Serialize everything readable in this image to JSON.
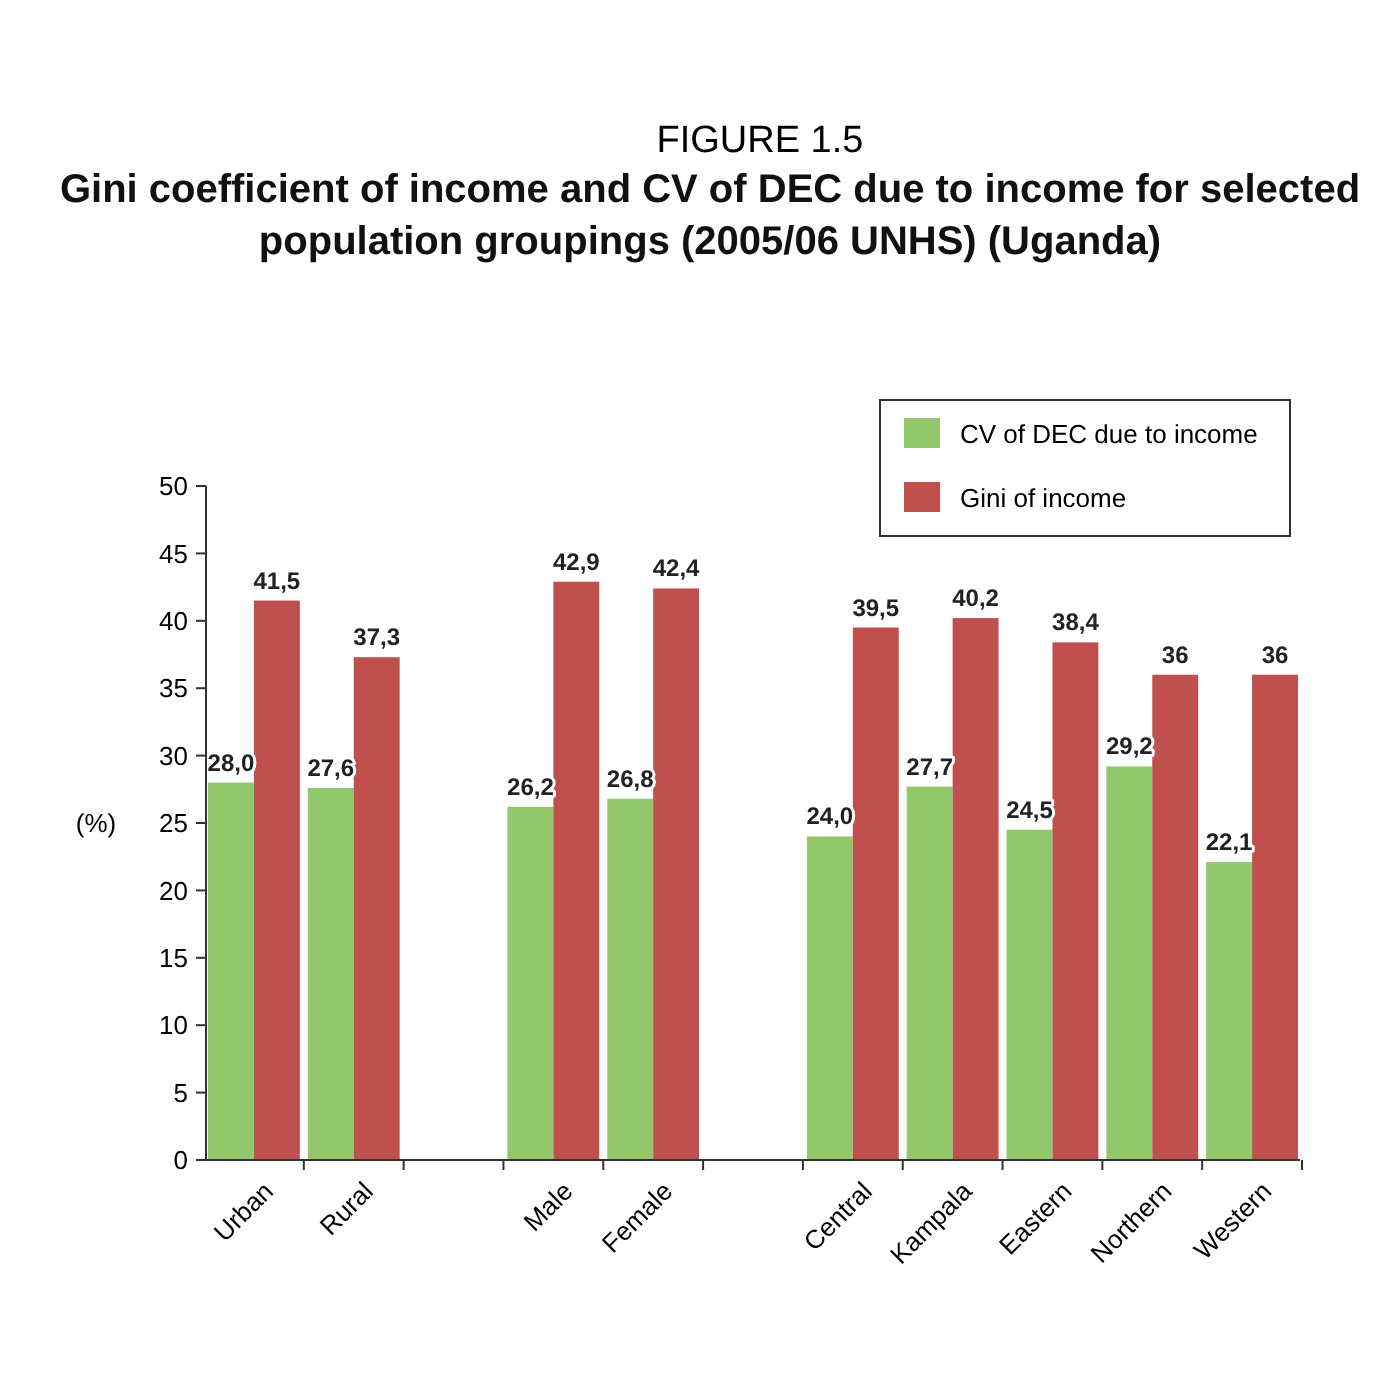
{
  "chart_data": {
    "type": "bar",
    "title": "FIGURE 1.5",
    "subtitle": "Gini coefficient of income and CV of DEC due to income for selected population groupings (2005/06 UNHS) (Uganda)",
    "ylabel": "(%)",
    "categories": [
      "Urban",
      "Rural",
      null,
      "Male",
      "Female",
      null,
      "Central",
      "Kampala",
      "Eastern",
      "Northern",
      "Western"
    ],
    "series": [
      {
        "name": "CV of DEC due to income",
        "color": "#92c86b",
        "values": [
          28.0,
          27.6,
          null,
          26.2,
          26.8,
          null,
          24.0,
          27.7,
          24.5,
          29.2,
          22.1
        ],
        "value_labels": [
          "28,0",
          "27,6",
          null,
          "26,2",
          "26,8",
          null,
          "24,0",
          "27,7",
          "24,5",
          "29,2",
          "22,1"
        ]
      },
      {
        "name": "Gini of income",
        "color": "#c0504d",
        "values": [
          41.5,
          37.3,
          null,
          42.9,
          42.4,
          null,
          39.5,
          40.2,
          38.4,
          36,
          36
        ],
        "value_labels": [
          "41,5",
          "37,3",
          null,
          "42,9",
          "42,4",
          null,
          "39,5",
          "40,2",
          "38,4",
          "36",
          "36"
        ]
      }
    ],
    "ylim": [
      0,
      50
    ],
    "yticks": [
      0,
      5,
      10,
      15,
      20,
      25,
      30,
      35,
      40,
      45,
      50
    ],
    "grid": false,
    "legend": "top right"
  }
}
